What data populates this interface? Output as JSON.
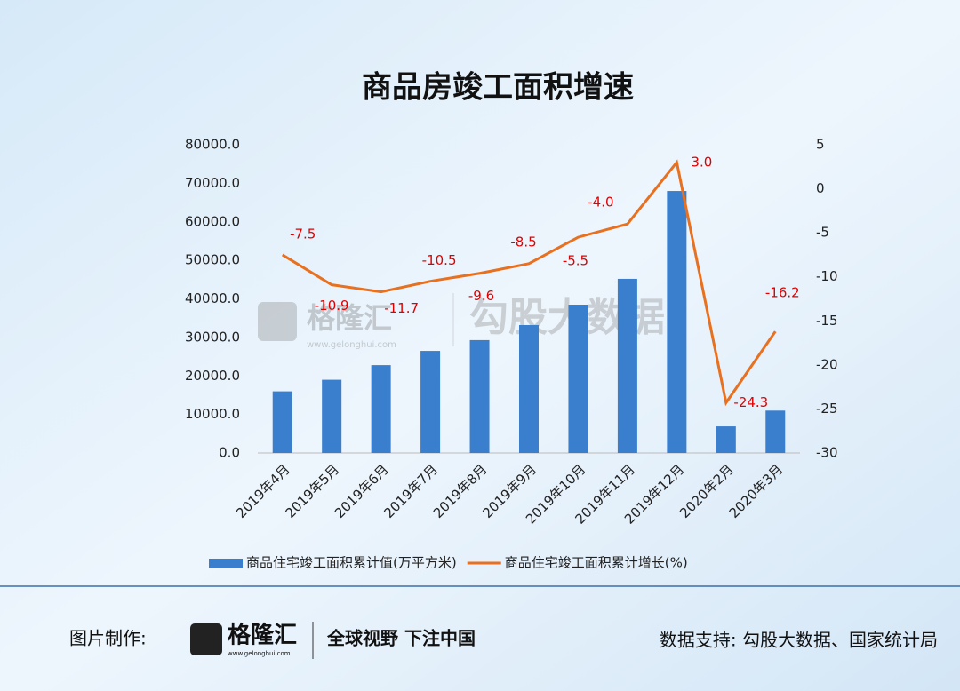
{
  "chart_data": {
    "type": "bar-line",
    "title": "商品房竣工面积增速",
    "categories": [
      "2019年4月",
      "2019年5月",
      "2019年6月",
      "2019年7月",
      "2019年8月",
      "2019年9月",
      "2019年10月",
      "2019年11月",
      "2019年12月",
      "2020年2月",
      "2020年3月"
    ],
    "series": [
      {
        "name": "商品住宅竣工面积累计值(万平方米)",
        "type": "bar",
        "color": "#3a7fce",
        "values": [
          16000,
          19000,
          22800,
          26500,
          29300,
          33200,
          38500,
          45200,
          68000,
          6900,
          11000
        ]
      },
      {
        "name": "商品住宅竣工面积累计增长(%)",
        "type": "line",
        "axis": "y2",
        "color": "#e8701e",
        "values": [
          -7.5,
          -10.9,
          -11.7,
          -10.5,
          -9.6,
          -8.5,
          -5.5,
          -4.0,
          3.0,
          -24.3,
          -16.2
        ],
        "value_labels": [
          "-7.5",
          "-10.9",
          "-11.7",
          "-10.5",
          "-9.6",
          "-8.5",
          "-5.5",
          "-4.0",
          "3.0",
          "-24.3",
          "-16.2"
        ]
      }
    ],
    "ylim": [
      0,
      80000
    ],
    "yticks": [
      {
        "value": 0,
        "label": "0.0"
      },
      {
        "value": 10000,
        "label": "10000.0"
      },
      {
        "value": 20000,
        "label": "20000.0"
      },
      {
        "value": 30000,
        "label": "30000.0"
      },
      {
        "value": 40000,
        "label": "40000.0"
      },
      {
        "value": 50000,
        "label": "50000.0"
      },
      {
        "value": 60000,
        "label": "60000.0"
      },
      {
        "value": 70000,
        "label": "70000.0"
      },
      {
        "value": 80000,
        "label": "80000.0"
      }
    ],
    "y2lim": [
      -30,
      5
    ],
    "y2ticks": [
      -30,
      -25,
      -20,
      -15,
      -10,
      -5,
      0,
      5
    ],
    "legend": "bottom"
  },
  "watermark": {
    "logo": "格隆汇",
    "url": "www.gelonghui.com",
    "brand": "勾股大数据"
  },
  "footer": {
    "made_by": "图片制作:",
    "logo": "格隆汇",
    "url": "www.gelonghui.com",
    "slogan": "全球视野 下注中国",
    "source": "数据支持: 勾股大数据、国家统计局"
  }
}
